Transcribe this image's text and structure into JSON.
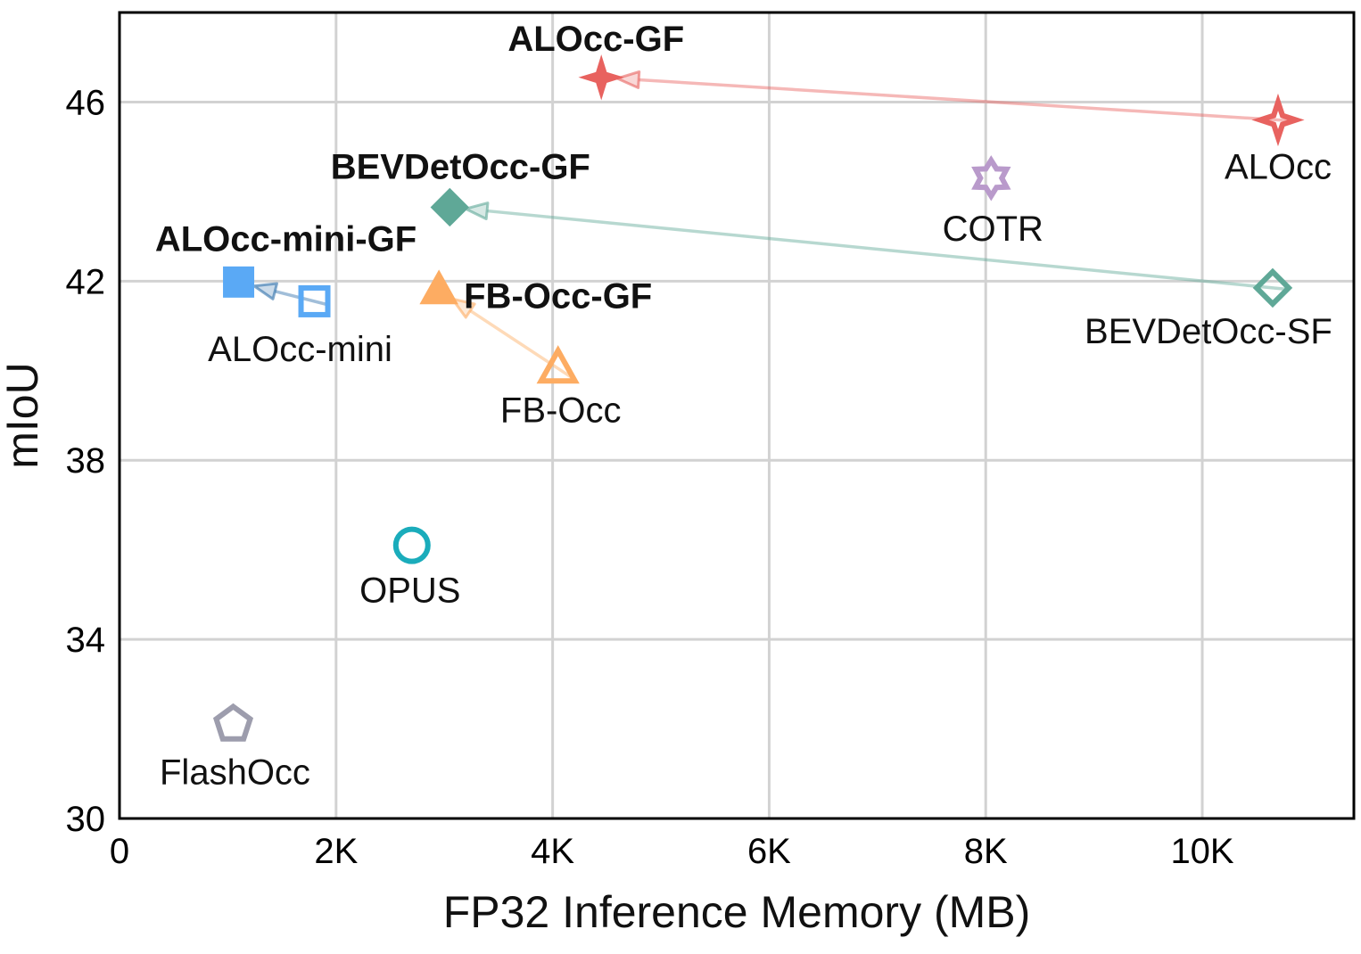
{
  "chart_data": {
    "type": "scatter",
    "xlabel": "FP32 Inference Memory (MB)",
    "ylabel": "mIoU",
    "xlim": [
      0,
      11400
    ],
    "ylim": [
      30,
      48
    ],
    "grid": true,
    "x_ticks": [
      {
        "value": 0,
        "label": "0"
      },
      {
        "value": 2000,
        "label": "2K"
      },
      {
        "value": 4000,
        "label": "4K"
      },
      {
        "value": 6000,
        "label": "6K"
      },
      {
        "value": 8000,
        "label": "8K"
      },
      {
        "value": 10000,
        "label": "10K"
      }
    ],
    "y_ticks": [
      {
        "value": 30,
        "label": "30"
      },
      {
        "value": 34,
        "label": "34"
      },
      {
        "value": 38,
        "label": "38"
      },
      {
        "value": 42,
        "label": "42"
      },
      {
        "value": 46,
        "label": "46"
      }
    ],
    "points": [
      {
        "id": "alocc",
        "label": "ALOcc",
        "x": 10700,
        "y": 45.6,
        "marker": "star4",
        "filled": false,
        "bold": false,
        "color": "#e8625f",
        "label_pos": "below"
      },
      {
        "id": "alocc-gf",
        "label": "ALOcc-GF",
        "x": 4450,
        "y": 46.55,
        "marker": "star4",
        "filled": true,
        "bold": true,
        "color": "#e8625f",
        "label_pos": "above"
      },
      {
        "id": "cotr",
        "label": "COTR",
        "x": 8050,
        "y": 44.3,
        "marker": "star6",
        "filled": false,
        "bold": false,
        "color": "#b99acb",
        "label_pos": "below"
      },
      {
        "id": "bevdetocc-sf",
        "label": "BEVDetOcc-SF",
        "x": 10650,
        "y": 41.85,
        "marker": "diamond",
        "filled": false,
        "bold": false,
        "color": "#5fa897",
        "label_pos": "below"
      },
      {
        "id": "bevdetocc-gf",
        "label": "BEVDetOcc-GF",
        "x": 3050,
        "y": 43.65,
        "marker": "diamond",
        "filled": true,
        "bold": true,
        "color": "#5fa897",
        "label_pos": "above"
      },
      {
        "id": "alocc-mini",
        "label": "ALOcc-mini",
        "x": 1800,
        "y": 41.55,
        "marker": "square",
        "filled": false,
        "bold": false,
        "color": "#5aa9f5",
        "label_pos": "below"
      },
      {
        "id": "alocc-mini-gf",
        "label": "ALOcc-mini-GF",
        "x": 1100,
        "y": 41.98,
        "marker": "square",
        "filled": true,
        "bold": true,
        "color": "#5aa9f5",
        "label_pos": "above"
      },
      {
        "id": "fb-occ",
        "label": "FB-Occ",
        "x": 4050,
        "y": 40.05,
        "marker": "triangle",
        "filled": false,
        "bold": false,
        "color": "#fdac62",
        "label_pos": "below"
      },
      {
        "id": "fb-occ-gf",
        "label": "FB-Occ-GF",
        "x": 2950,
        "y": 41.8,
        "marker": "triangle",
        "filled": true,
        "bold": true,
        "color": "#fdac62",
        "label_pos": "right"
      },
      {
        "id": "opus",
        "label": "OPUS",
        "x": 2700,
        "y": 36.1,
        "marker": "circle",
        "filled": false,
        "bold": false,
        "color": "#1aacbb",
        "label_pos": "below"
      },
      {
        "id": "flashocc",
        "label": "FlashOcc",
        "x": 1050,
        "y": 32.1,
        "marker": "pentagon",
        "filled": false,
        "bold": false,
        "color": "#9d9dad",
        "label_pos": "below"
      }
    ],
    "arrows": [
      {
        "from": "alocc",
        "to": "alocc-gf",
        "color": "#e8625f"
      },
      {
        "from": "bevdetocc-sf",
        "to": "bevdetocc-gf",
        "color": "#5fa897"
      },
      {
        "from": "alocc-mini",
        "to": "alocc-mini-gf",
        "color": "#2f6faa"
      },
      {
        "from": "fb-occ",
        "to": "fb-occ-gf",
        "color": "#fdac62"
      }
    ]
  }
}
